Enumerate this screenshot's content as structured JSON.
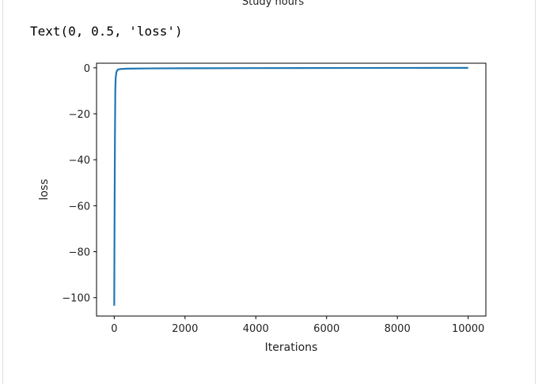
{
  "previous_output": {
    "title_fragment": "Study hours"
  },
  "output": {
    "text": "Text(0, 0.5, 'loss')"
  },
  "chart_data": {
    "type": "line",
    "title": "",
    "xlabel": "Iterations",
    "ylabel": "loss",
    "xlim": [
      -500,
      10500
    ],
    "ylim": [
      -108,
      2
    ],
    "xticks": [
      0,
      2000,
      4000,
      6000,
      8000,
      10000
    ],
    "yticks": [
      0,
      -20,
      -40,
      -60,
      -80,
      -100
    ],
    "xtick_labels": [
      "0",
      "2000",
      "4000",
      "6000",
      "8000",
      "10000"
    ],
    "ytick_labels": [
      "0",
      "−20",
      "−40",
      "−60",
      "−80",
      "−100"
    ],
    "grid": false,
    "color": "#1f77b4",
    "series": [
      {
        "x": [
          0,
          10,
          20,
          30,
          40,
          60,
          80,
          100,
          150,
          200,
          400,
          1000,
          2000,
          4000,
          6000,
          8000,
          10000
        ],
        "y": [
          -103.5,
          -62,
          -30,
          -10,
          -4.5,
          -2,
          -1.2,
          -0.8,
          -0.6,
          -0.5,
          -0.35,
          -0.25,
          -0.2,
          -0.12,
          -0.08,
          -0.05,
          -0.02
        ]
      }
    ]
  }
}
